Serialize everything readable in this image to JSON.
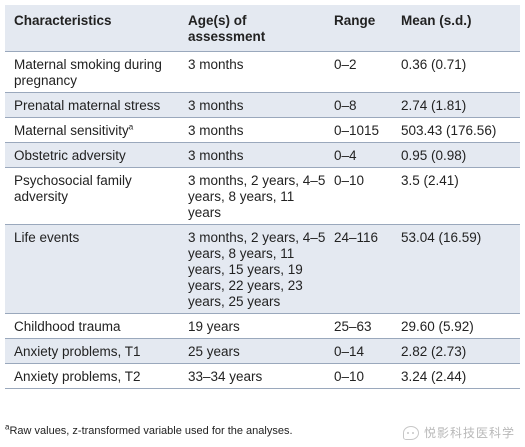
{
  "table": {
    "headers": {
      "characteristics": "Characteristics",
      "age": "Age(s) of assessment",
      "range": "Range",
      "mean": "Mean (s.d.)"
    },
    "rows": [
      {
        "characteristic": "Maternal smoking during pregnancy",
        "sup": "",
        "age": "3 months",
        "range": "0–2",
        "mean": "0.36 (0.71)"
      },
      {
        "characteristic": "Prenatal maternal stress",
        "sup": "",
        "age": "3 months",
        "range": "0–8",
        "mean": "2.74 (1.81)"
      },
      {
        "characteristic": "Maternal sensitivity",
        "sup": "a",
        "age": "3 months",
        "range": "0–1015",
        "mean": "503.43 (176.56)"
      },
      {
        "characteristic": "Obstetric adversity",
        "sup": "",
        "age": "3 months",
        "range": "0–4",
        "mean": "0.95 (0.98)"
      },
      {
        "characteristic": "Psychosocial family adversity",
        "sup": "",
        "age": "3 months, 2 years, 4–5 years, 8 years, 11 years",
        "range": "0–10",
        "mean": "3.5 (2.41)"
      },
      {
        "characteristic": "Life events",
        "sup": "",
        "age": "3 months, 2 years, 4–5 years, 8 years, 11 years, 15 years, 19 years, 22 years, 23 years, 25 years",
        "range": "24–116",
        "mean": "53.04 (16.59)"
      },
      {
        "characteristic": "Childhood trauma",
        "sup": "",
        "age": "19 years",
        "range": "25–63",
        "mean": "29.60 (5.92)"
      },
      {
        "characteristic": "Anxiety problems, T1",
        "sup": "",
        "age": "25 years",
        "range": "0–14",
        "mean": "2.82 (2.73)"
      },
      {
        "characteristic": "Anxiety problems, T2",
        "sup": "",
        "age": "33–34 years",
        "range": "0–10",
        "mean": "3.24 (2.44)"
      }
    ]
  },
  "footnote": {
    "marker": "a",
    "text": "Raw values, z-transformed variable used for the analyses."
  },
  "watermark": {
    "text": "悦影科技医科学",
    "icon": "wechat-icon"
  }
}
